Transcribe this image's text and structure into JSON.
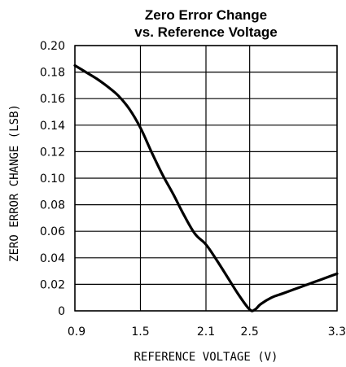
{
  "chart_data": {
    "type": "line",
    "title": "Zero Error Change",
    "subtitle": "vs. Reference Voltage",
    "xlabel": "REFERENCE VOLTAGE (V)",
    "ylabel": "ZERO ERROR CHANGE (LSB)",
    "xlim": [
      0.9,
      3.3
    ],
    "ylim": [
      0,
      0.2
    ],
    "xticks": [
      0.9,
      1.5,
      2.1,
      2.5,
      3.3
    ],
    "xtick_labels": [
      "0.9",
      "1.5",
      "2.1",
      "2.5",
      "3.3"
    ],
    "yticks": [
      0,
      0.02,
      0.04,
      0.06,
      0.08,
      0.1,
      0.12,
      0.14,
      0.16,
      0.18,
      0.2
    ],
    "ytick_labels": [
      "0",
      "0.02",
      "0.04",
      "0.06",
      "0.08",
      "0.10",
      "0.12",
      "0.14",
      "0.16",
      "0.18",
      "0.20"
    ],
    "grid": true,
    "legend": "none",
    "series": [
      {
        "x": [
          0.9,
          1.0,
          1.1,
          1.2,
          1.3,
          1.4,
          1.5,
          1.6,
          1.7,
          1.8,
          1.9,
          2.0,
          2.1,
          2.2,
          2.3,
          2.4,
          2.5,
          2.55,
          2.6,
          2.7,
          2.8,
          2.9,
          3.0,
          3.1,
          3.2,
          3.3
        ],
        "y": [
          0.185,
          0.18,
          0.175,
          0.169,
          0.162,
          0.152,
          0.138,
          0.12,
          0.103,
          0.088,
          0.072,
          0.058,
          0.05,
          0.038,
          0.025,
          0.012,
          0.001,
          0.001,
          0.005,
          0.01,
          0.013,
          0.016,
          0.019,
          0.022,
          0.025,
          0.028
        ]
      }
    ]
  }
}
